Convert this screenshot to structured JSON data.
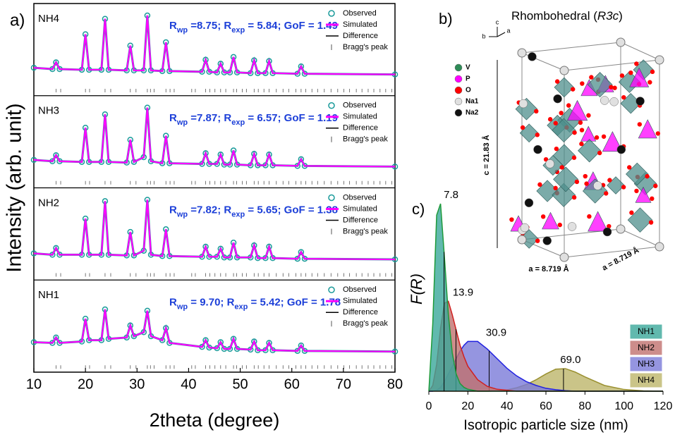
{
  "chart_data": [
    {
      "type": "xrd",
      "panel_label": "a)",
      "xlabel": "2theta (degree)",
      "ylabel": "Intensity (arb. unit)",
      "xlim": [
        10,
        80
      ],
      "xticks": [
        10,
        20,
        30,
        40,
        50,
        60,
        70,
        80
      ],
      "ylim": [
        0,
        100
      ],
      "legend": [
        "Observed",
        "Simulated",
        "Difference",
        "Bragg's peak"
      ],
      "observed_color": "#1a9a9a",
      "simulated_color": "#ff00ff",
      "fit_color": "#1c3fd8",
      "x": [
        10,
        13.6,
        14.3,
        15,
        19.3,
        20,
        20.7,
        23.1,
        23.8,
        24.5,
        28,
        28.7,
        29.4,
        31.3,
        32,
        32.7,
        34.9,
        35.6,
        36.3,
        42.6,
        43.3,
        44,
        45.5,
        46.2,
        46.9,
        48,
        48.7,
        49.4,
        52,
        52.7,
        53.4,
        54.9,
        55.6,
        56.3,
        61.1,
        61.8,
        62.5,
        80
      ],
      "series": [
        {
          "name": "NH4",
          "fit_label": [
            "R",
            "wp",
            " =8.75; R",
            "exp",
            " = 5.84; GoF = 1.49"
          ],
          "values": [
            22,
            20,
            30,
            20,
            19,
            72,
            19,
            19,
            95,
            19,
            18,
            55,
            18,
            18,
            100,
            18,
            17,
            60,
            17,
            16,
            34,
            16,
            15,
            28,
            15,
            15,
            38,
            15,
            14,
            33,
            14,
            14,
            32,
            14,
            13,
            24,
            13,
            12
          ]
        },
        {
          "name": "NH3",
          "fit_label": [
            "R",
            "wp",
            " =7.87; R",
            "exp",
            " = 6.57; GoF = 1.19"
          ],
          "values": [
            22,
            20,
            29,
            20,
            19,
            70,
            19,
            19,
            90,
            19,
            18,
            52,
            19,
            26,
            100,
            20,
            17,
            58,
            17,
            16,
            32,
            16,
            16,
            30,
            15,
            15,
            36,
            15,
            14,
            31,
            14,
            14,
            30,
            14,
            13,
            23,
            13,
            12
          ]
        },
        {
          "name": "NH2",
          "fit_label": [
            "R",
            "wp",
            " =7.82; R",
            "exp",
            " = 5.65; GoF = 1.38"
          ],
          "values": [
            20,
            18,
            28,
            18,
            18,
            72,
            18,
            18,
            98,
            18,
            17,
            52,
            17,
            24,
            100,
            18,
            16,
            56,
            16,
            15,
            30,
            15,
            15,
            27,
            14,
            14,
            36,
            14,
            14,
            32,
            13,
            13,
            30,
            13,
            12,
            22,
            12,
            11
          ]
        },
        {
          "name": "NH1",
          "fit_label": [
            "R",
            "wp",
            " = 9.70; R",
            "exp",
            " = 5.42; GoF = 1.78"
          ],
          "values": [
            25,
            24,
            32,
            24,
            26,
            60,
            28,
            28,
            74,
            30,
            32,
            50,
            34,
            40,
            72,
            34,
            28,
            46,
            24,
            18,
            28,
            17,
            16,
            25,
            15,
            15,
            30,
            15,
            14,
            26,
            13,
            13,
            24,
            13,
            12,
            20,
            12,
            11
          ]
        }
      ],
      "bragg_peaks": [
        14.3,
        15.2,
        20,
        20.8,
        23.8,
        24.9,
        28.7,
        29.8,
        32,
        32.6,
        33.3,
        35.6,
        36.4,
        37.2,
        40.6,
        41.3,
        43.3,
        44.1,
        45.1,
        46.2,
        47.2,
        48.7,
        49.3,
        50.4,
        51.2,
        52.7,
        53.5,
        54.6,
        55.6,
        57,
        58.3,
        59.4,
        60.8,
        61.8,
        62.7,
        63.9,
        65,
        66.3,
        67.6,
        68.9,
        70.1,
        71.2,
        72.5,
        73.6,
        74.8,
        75.9,
        77.1,
        78.2,
        79.4
      ]
    },
    {
      "type": "area",
      "panel_label": "c)",
      "xlabel": "Isotropic particle size (nm)",
      "ylabel": "F(R)",
      "xlim": [
        0,
        120
      ],
      "xticks": [
        0,
        20,
        40,
        60,
        80,
        100,
        120
      ],
      "ylim": [
        0,
        105
      ],
      "x": [
        0,
        2,
        4,
        6,
        8,
        10,
        12,
        14,
        16,
        18,
        20,
        25,
        30,
        35,
        40,
        45,
        50,
        55,
        60,
        65,
        70,
        75,
        80,
        90,
        100,
        110,
        120
      ],
      "series": [
        {
          "name": "NH1",
          "color": "#3aa89a",
          "line": "#1e9a3a",
          "mean": 7.8,
          "mean_label": "7.8",
          "values": [
            0,
            35,
            92,
            98,
            70,
            40,
            20,
            9,
            4,
            2,
            1,
            0,
            0,
            0,
            0,
            0,
            0,
            0,
            0,
            0,
            0,
            0,
            0,
            0,
            0,
            0,
            0
          ]
        },
        {
          "name": "NH2",
          "color": "#c0706e",
          "line": "#d02020",
          "mean": 13.9,
          "mean_label": "13.9",
          "values": [
            0,
            3,
            14,
            33,
            46,
            47,
            40,
            32,
            24,
            18,
            13,
            6,
            2.5,
            1,
            0.5,
            0,
            0,
            0,
            0,
            0,
            0,
            0,
            0,
            0,
            0,
            0,
            0
          ]
        },
        {
          "name": "NH3",
          "color": "#7a7ad8",
          "line": "#2020e0",
          "mean": 30.9,
          "mean_label": "30.9",
          "values": [
            0,
            0,
            0.5,
            2,
            5,
            9,
            13,
            17,
            21,
            24,
            26,
            26,
            22,
            17,
            12,
            8,
            5,
            3,
            1.5,
            0.8,
            0.3,
            0,
            0,
            0,
            0,
            0,
            0
          ]
        },
        {
          "name": "NH4",
          "color": "#bdb56a",
          "line": "#9a9030",
          "mean": 69.0,
          "mean_label": "69.0",
          "values": [
            0,
            0,
            0,
            0,
            0,
            0,
            0,
            0,
            0,
            0,
            0,
            0,
            0,
            0.2,
            0.7,
            1.8,
            3.5,
            6,
            9,
            11.5,
            11.8,
            10,
            7.5,
            3,
            0.9,
            0.2,
            0
          ]
        }
      ]
    }
  ],
  "structure": {
    "panel_label": "b)",
    "title": "Rhombohedral (",
    "title_italic": "R3c",
    "title_end": ")",
    "axes": [
      "c",
      "b",
      "a"
    ],
    "legend": [
      {
        "label": "V",
        "color": "#2e8b57"
      },
      {
        "label": "P",
        "color": "#ff00ff"
      },
      {
        "label": "O",
        "color": "#ff0000"
      },
      {
        "label": "Na1",
        "color": "#e0e0e0"
      },
      {
        "label": "Na2",
        "color": "#111111"
      }
    ],
    "c_label": "c = 21.83 Å",
    "a_labels": [
      "a = 8.719 Å",
      "a = 8.719 Å"
    ]
  }
}
